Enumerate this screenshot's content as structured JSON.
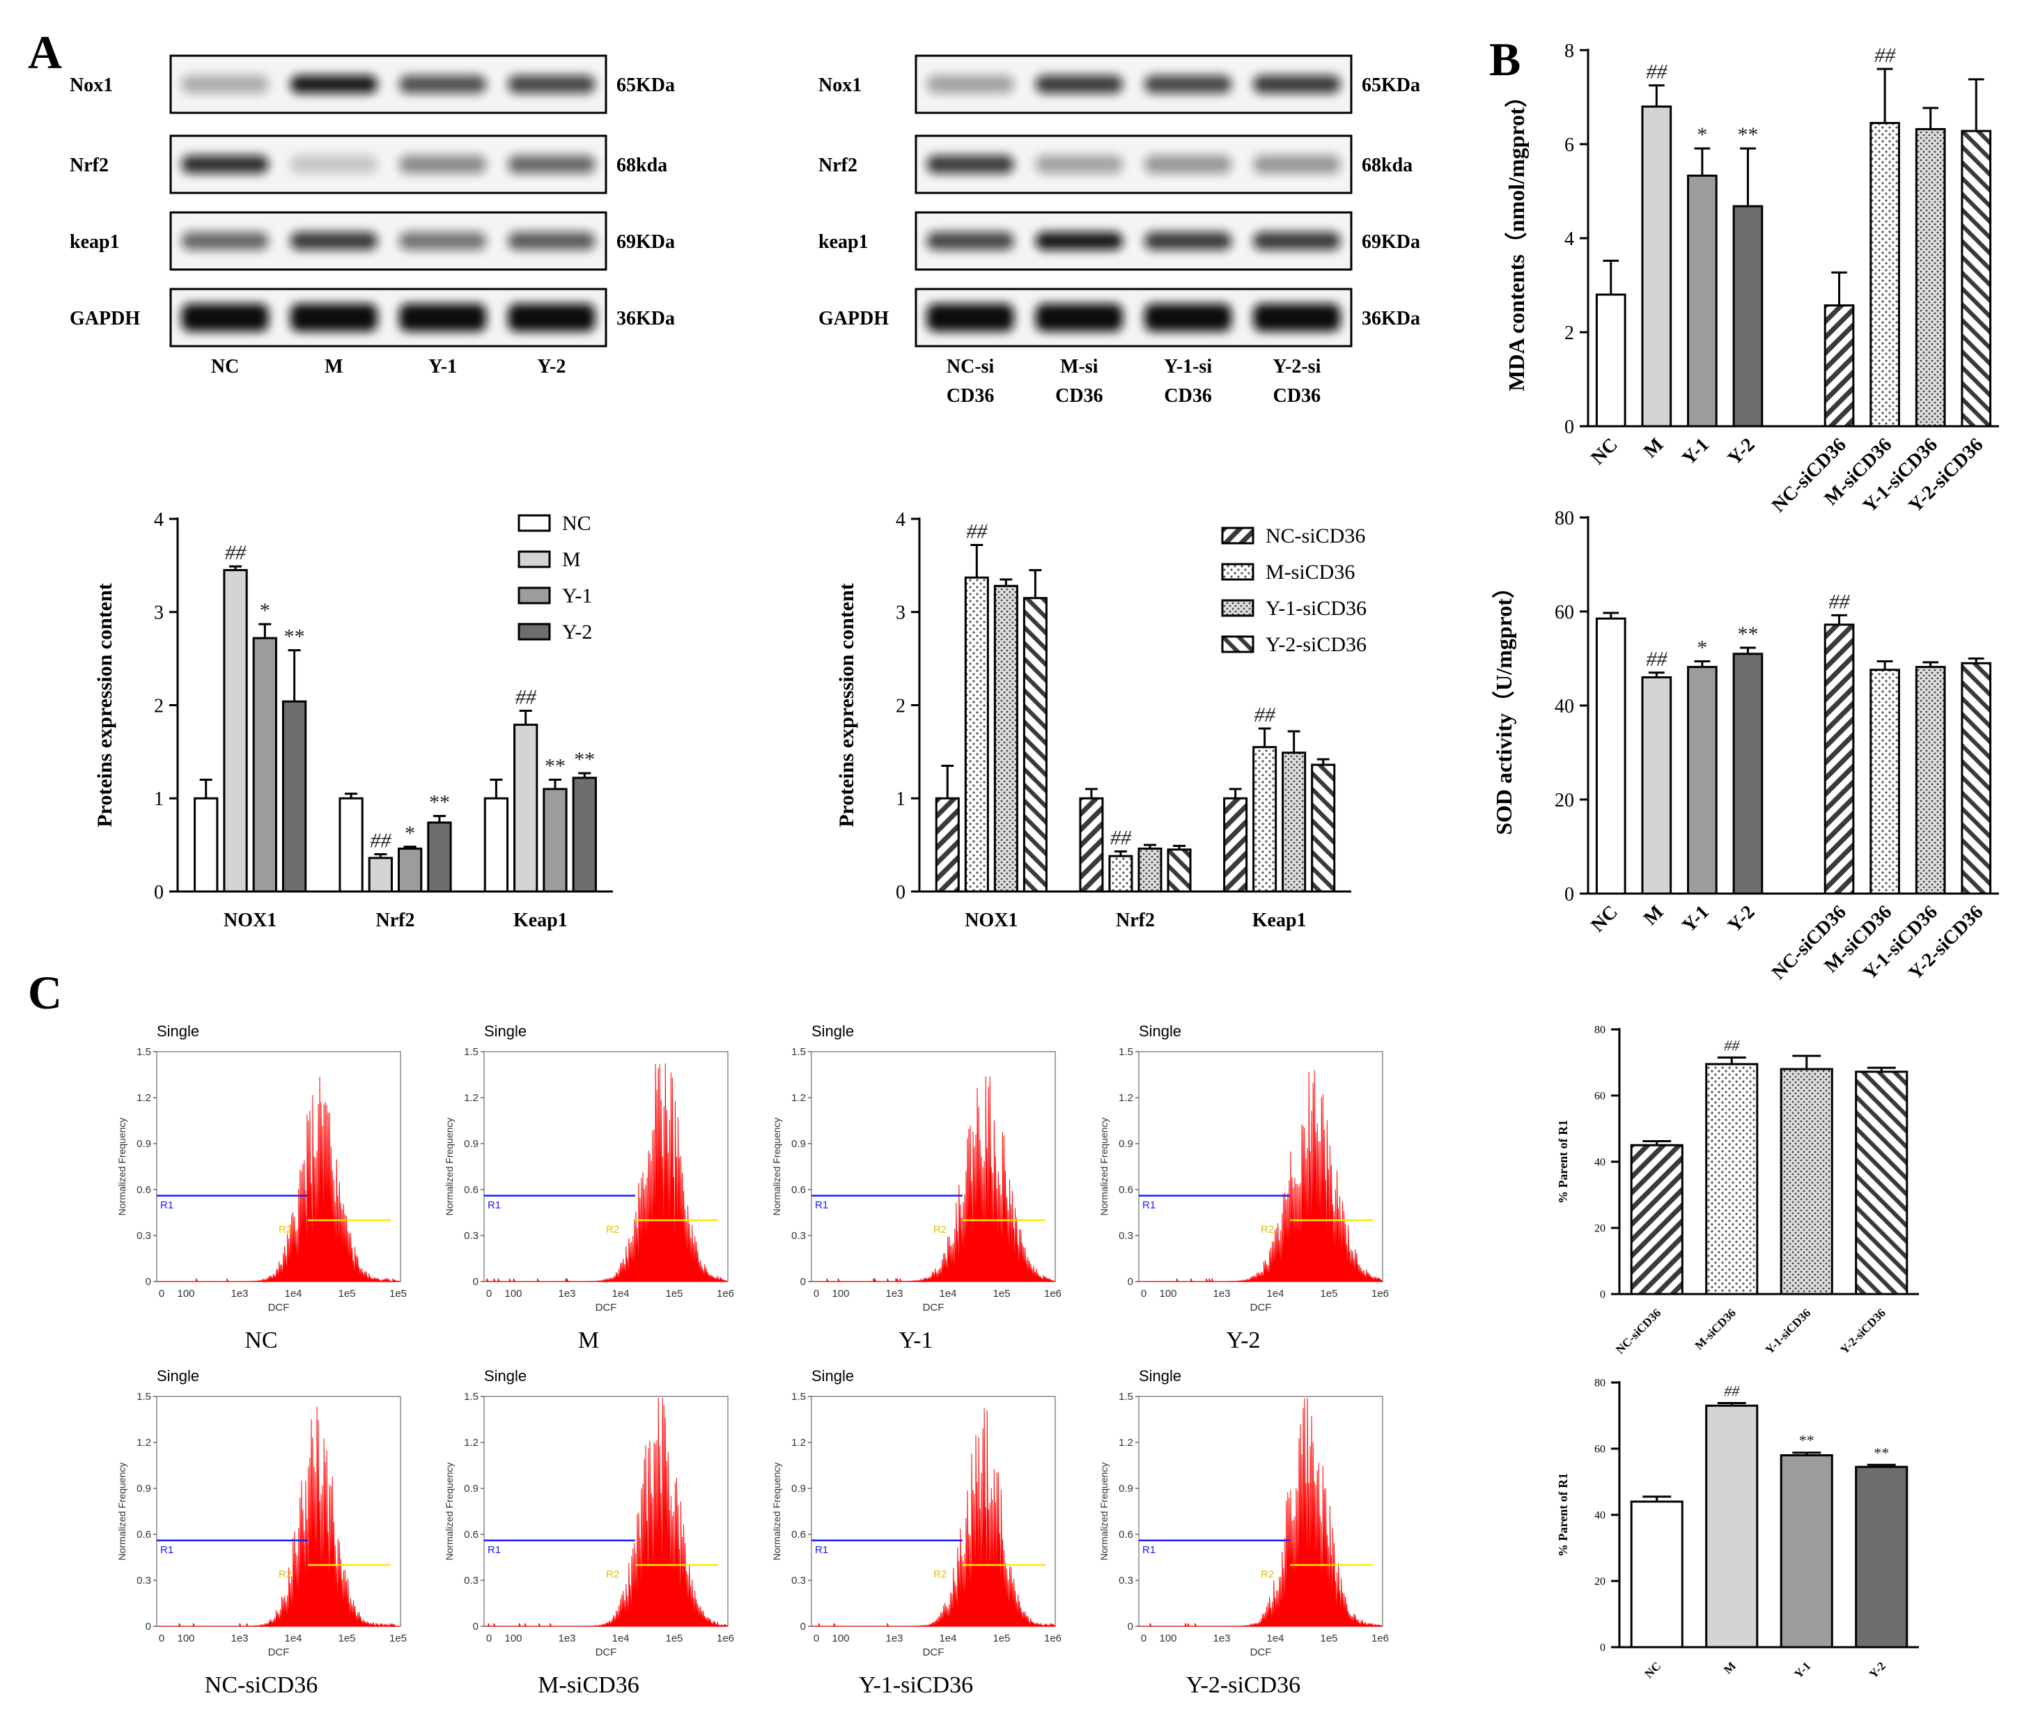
{
  "panels": {
    "A": "A",
    "B": "B",
    "C": "C"
  },
  "blots": [
    {
      "rows": [
        {
          "name": "Nox1",
          "size": "65KDa"
        },
        {
          "name": "Nrf2",
          "size": "68kda"
        },
        {
          "name": "keap1",
          "size": "69KDa"
        },
        {
          "name": "GAPDH",
          "size": "36KDa"
        }
      ],
      "lanes": [
        "NC",
        "M",
        "Y-1",
        "Y-2"
      ],
      "intensity": [
        [
          0.3,
          0.95,
          0.7,
          0.75
        ],
        [
          0.85,
          0.2,
          0.45,
          0.6
        ],
        [
          0.6,
          0.8,
          0.55,
          0.65
        ],
        [
          1.0,
          1.0,
          1.0,
          1.0
        ]
      ]
    },
    {
      "rows": [
        {
          "name": "Nox1",
          "size": "65KDa"
        },
        {
          "name": "Nrf2",
          "size": "68kda"
        },
        {
          "name": "keap1",
          "size": "69KDa"
        },
        {
          "name": "GAPDH",
          "size": "36KDa"
        }
      ],
      "lanes": [
        "NC-si\nCD36",
        "M-si\nCD36",
        "Y-1-si\nCD36",
        "Y-2-si\nCD36"
      ],
      "intensity": [
        [
          0.35,
          0.8,
          0.75,
          0.8
        ],
        [
          0.8,
          0.35,
          0.4,
          0.4
        ],
        [
          0.75,
          0.95,
          0.8,
          0.8
        ],
        [
          1.0,
          1.0,
          1.0,
          1.0
        ]
      ]
    }
  ],
  "colors": {
    "white": "#ffffff",
    "lightgray": "#d4d4d4",
    "midgray": "#9c9c9c",
    "darkgray": "#6e6e6e",
    "histred": "#ff0000",
    "gateR1": "#1a1aff",
    "gateR2": "#ffe600"
  },
  "chart_data": [
    {
      "id": "protein-nc",
      "type": "bar",
      "title": "",
      "xlabel": "",
      "ylabel": "Proteins expression content",
      "ylim": [
        0,
        4
      ],
      "yticks": [
        0,
        1,
        2,
        3,
        4
      ],
      "categories": [
        "NOX1",
        "Nrf2",
        "Keap1"
      ],
      "legend_position": "top-right",
      "series": [
        {
          "name": "NC",
          "fill": "white",
          "values": [
            1.0,
            1.0,
            1.0
          ],
          "errors": [
            0.2,
            0.05,
            0.2
          ],
          "labels": [
            "",
            "",
            ""
          ]
        },
        {
          "name": "M",
          "fill": "lightgray",
          "values": [
            3.45,
            0.36,
            1.79
          ],
          "errors": [
            0.04,
            0.04,
            0.15
          ],
          "labels": [
            "##",
            "##",
            "##"
          ]
        },
        {
          "name": "Y-1",
          "fill": "midgray",
          "values": [
            2.72,
            0.46,
            1.1
          ],
          "errors": [
            0.15,
            0.02,
            0.1
          ],
          "labels": [
            "*",
            "*",
            "**"
          ]
        },
        {
          "name": "Y-2",
          "fill": "darkgray",
          "values": [
            2.04,
            0.74,
            1.22
          ],
          "errors": [
            0.55,
            0.07,
            0.05
          ],
          "labels": [
            "**",
            "**",
            "**"
          ]
        }
      ]
    },
    {
      "id": "protein-si",
      "type": "bar",
      "title": "",
      "xlabel": "",
      "ylabel": "Proteins expression content",
      "ylim": [
        0,
        4
      ],
      "yticks": [
        0,
        1,
        2,
        3,
        4
      ],
      "categories": [
        "NOX1",
        "Nrf2",
        "Keap1"
      ],
      "legend_position": "top-right",
      "series": [
        {
          "name": "NC-siCD36",
          "fill": "hatch",
          "values": [
            1.0,
            1.0,
            1.0
          ],
          "errors": [
            0.35,
            0.1,
            0.1
          ],
          "labels": [
            "",
            "",
            ""
          ]
        },
        {
          "name": "M-siCD36",
          "fill": "dots",
          "values": [
            3.37,
            0.38,
            1.55
          ],
          "errors": [
            0.35,
            0.05,
            0.2
          ],
          "labels": [
            "##",
            "##",
            "##"
          ]
        },
        {
          "name": "Y-1-siCD36",
          "fill": "dense",
          "values": [
            3.28,
            0.46,
            1.49
          ],
          "errors": [
            0.07,
            0.04,
            0.23
          ],
          "labels": [
            "",
            "",
            ""
          ]
        },
        {
          "name": "Y-2-siCD36",
          "fill": "hatchback",
          "values": [
            3.15,
            0.45,
            1.36
          ],
          "errors": [
            0.3,
            0.04,
            0.06
          ],
          "labels": [
            "",
            "",
            ""
          ]
        }
      ]
    },
    {
      "id": "mda",
      "type": "bar",
      "title": "",
      "xlabel": "",
      "ylabel": "MDA contents（nmol/mgprot）",
      "ylim": [
        0,
        8
      ],
      "yticks": [
        0,
        2,
        4,
        6,
        8
      ],
      "categories": [
        "NC",
        "M",
        "Y-1",
        "Y-2",
        "NC-siCD36",
        "M-siCD36",
        "Y-1-siCD36",
        "Y-2-siCD36"
      ],
      "fills": [
        "white",
        "lightgray",
        "midgray",
        "darkgray",
        "hatch",
        "dots",
        "dense",
        "hatchback"
      ],
      "values": [
        2.8,
        6.8,
        5.33,
        4.68,
        2.57,
        6.45,
        6.32,
        6.28
      ],
      "errors": [
        0.72,
        0.45,
        0.58,
        1.23,
        0.7,
        1.15,
        0.45,
        1.1
      ],
      "labels": [
        "",
        "##",
        "*",
        "**",
        "",
        "##",
        "",
        ""
      ]
    },
    {
      "id": "sod",
      "type": "bar",
      "title": "",
      "xlabel": "",
      "ylabel": "SOD activity（U/mgprot）",
      "ylim": [
        0,
        80
      ],
      "yticks": [
        0,
        20,
        40,
        60,
        80
      ],
      "categories": [
        "NC",
        "M",
        "Y-1",
        "Y-2",
        "NC-siCD36",
        "M-siCD36",
        "Y-1-siCD36",
        "Y-2-siCD36"
      ],
      "fills": [
        "white",
        "lightgray",
        "midgray",
        "darkgray",
        "hatch",
        "dots",
        "dense",
        "hatchback"
      ],
      "values": [
        58.5,
        46.0,
        48.2,
        51.0,
        57.2,
        47.6,
        48.2,
        49.0
      ],
      "errors": [
        1.2,
        1.0,
        1.2,
        1.3,
        2.0,
        1.8,
        1.0,
        1.0
      ],
      "labels": [
        "",
        "##",
        "*",
        "**",
        "##",
        "",
        "",
        ""
      ]
    },
    {
      "id": "ros-si",
      "type": "bar",
      "title": "",
      "xlabel": "",
      "ylabel": "% Parent of R1",
      "ylim": [
        0,
        80
      ],
      "yticks": [
        0,
        20,
        40,
        60,
        80
      ],
      "categories": [
        "NC-siCD36",
        "M-siCD36",
        "Y-1-siCD36",
        "Y-2-siCD36"
      ],
      "fills": [
        "hatch",
        "dots",
        "dense",
        "hatchback"
      ],
      "values": [
        45.0,
        69.5,
        68.0,
        67.2
      ],
      "errors": [
        1.2,
        2.0,
        4.0,
        1.2
      ],
      "labels": [
        "",
        "##",
        "",
        ""
      ]
    },
    {
      "id": "ros-nc",
      "type": "bar",
      "title": "",
      "xlabel": "",
      "ylabel": "% Parent of R1",
      "ylim": [
        0,
        80
      ],
      "yticks": [
        0,
        20,
        40,
        60,
        80
      ],
      "categories": [
        "NC",
        "M",
        "Y-1",
        "Y-2"
      ],
      "fills": [
        "white",
        "lightgray",
        "midgray",
        "darkgray"
      ],
      "values": [
        44.0,
        73.0,
        58.0,
        54.5
      ],
      "errors": [
        1.5,
        0.8,
        0.8,
        0.6
      ],
      "labels": [
        "",
        "##",
        "**",
        "**"
      ]
    }
  ],
  "flow": {
    "title": "Single",
    "ylabel": "Normalized Frequency",
    "xlabel": "DCF",
    "yticks": [
      "0",
      "0.3",
      "0.6",
      "0.9",
      "1.2",
      "1.5"
    ],
    "xticks": [
      "0",
      "100",
      "1e3",
      "1e4",
      "1e5",
      "1e6"
    ],
    "gates": [
      "R1",
      "R2"
    ],
    "plots": [
      {
        "label": "NC",
        "peak": 1.22,
        "center": 4.1,
        "width": 0.42,
        "r1": 0.56,
        "r2": 0.4,
        "lastTick": "1e5"
      },
      {
        "label": "M",
        "peak": 1.42,
        "center": 4.45,
        "width": 0.42,
        "r1": 0.56,
        "r2": 0.4,
        "lastTick": "1e6"
      },
      {
        "label": "Y-1",
        "peak": 1.28,
        "center": 4.35,
        "width": 0.48,
        "r1": 0.56,
        "r2": 0.4,
        "lastTick": "1e6"
      },
      {
        "label": "Y-2",
        "peak": 1.28,
        "center": 4.35,
        "width": 0.5,
        "r1": 0.56,
        "r2": 0.4,
        "lastTick": "1e6"
      },
      {
        "label": "NC-siCD36",
        "peak": 1.3,
        "center": 4.05,
        "width": 0.4,
        "r1": 0.56,
        "r2": 0.4,
        "lastTick": "1e5"
      },
      {
        "label": "M-siCD36",
        "peak": 1.47,
        "center": 4.4,
        "width": 0.42,
        "r1": 0.56,
        "r2": 0.4,
        "lastTick": "1e6"
      },
      {
        "label": "Y-1-siCD36",
        "peak": 1.36,
        "center": 4.3,
        "width": 0.4,
        "r1": 0.56,
        "r2": 0.4,
        "lastTick": "1e6"
      },
      {
        "label": "Y-2-siCD36",
        "peak": 1.43,
        "center": 4.25,
        "width": 0.42,
        "r1": 0.56,
        "r2": 0.4,
        "lastTick": "1e6"
      }
    ]
  }
}
